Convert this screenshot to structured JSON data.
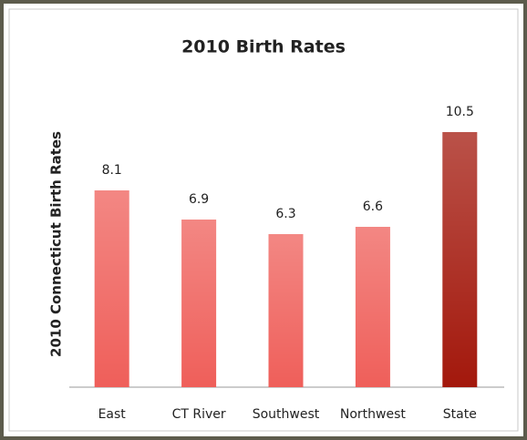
{
  "chart_data": {
    "type": "bar",
    "title": "2010 Birth Rates",
    "y_label": "2010 Connecticut Birth Rates",
    "categories": [
      "East",
      "CT River",
      "Southwest",
      "Northwest",
      "State"
    ],
    "values": [
      8.1,
      6.9,
      6.3,
      6.6,
      10.5
    ],
    "colors": [
      "#ef5f5a",
      "#ef5f5a",
      "#ef5f5a",
      "#ef5f5a",
      "#a3180c"
    ],
    "ylim": [
      0,
      12
    ]
  }
}
